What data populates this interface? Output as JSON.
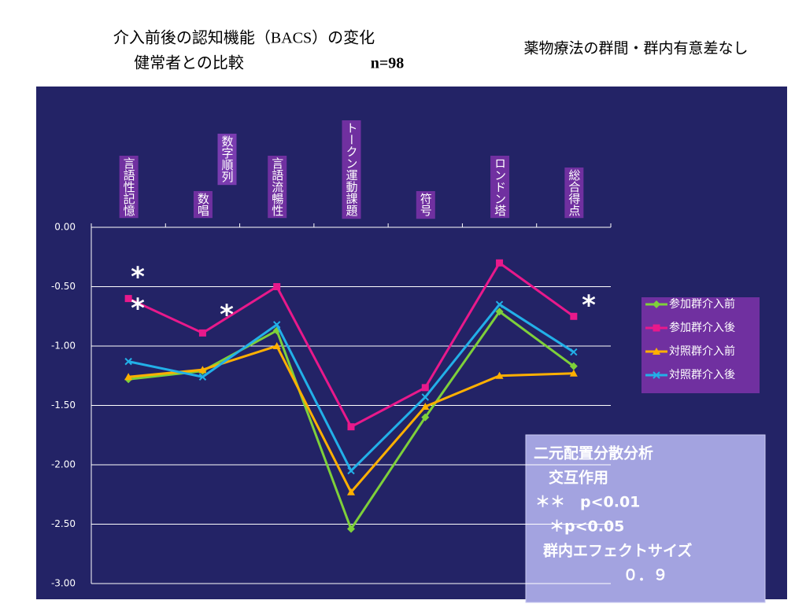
{
  "chart_data": {
    "type": "line",
    "title": "介入前後の認知機能（BACS）の変化",
    "subtitle": "健常者との比較",
    "sample_size": "n=98",
    "note": "薬物療法の群間・群内有意差なし",
    "categories": [
      "言語性記憶",
      "数唱",
      "言語流暢性",
      "トークン運動課題",
      "符号",
      "ロンドン塔",
      "総合得点"
    ],
    "overlay_label": "数字順列",
    "series": [
      {
        "name": "参加群介入前",
        "color": "#7ed03a",
        "marker": "diamond",
        "values": [
          -1.28,
          -1.21,
          -0.87,
          -2.54,
          -1.6,
          -0.71,
          -1.17
        ]
      },
      {
        "name": "参加群介入後",
        "color": "#e8198b",
        "marker": "square",
        "values": [
          -0.6,
          -0.89,
          -0.5,
          -1.68,
          -1.35,
          -0.3,
          -0.75
        ]
      },
      {
        "name": "対照群介入前",
        "color": "#ffb000",
        "marker": "triangle",
        "values": [
          -1.26,
          -1.2,
          -1.0,
          -2.23,
          -1.51,
          -1.25,
          -1.23
        ]
      },
      {
        "name": "対照群介入後",
        "color": "#22b0e8",
        "marker": "x",
        "values": [
          -1.13,
          -1.26,
          -0.82,
          -2.05,
          -1.43,
          -0.65,
          -1.05
        ]
      }
    ],
    "ylim": [
      -3,
      0
    ],
    "yticks": [
      {
        "value": 0,
        "label": "0.00"
      },
      {
        "value": -0.5,
        "label": "-0.50"
      },
      {
        "value": -1,
        "label": "-1.00"
      },
      {
        "value": -1.5,
        "label": "-1.50"
      },
      {
        "value": -2,
        "label": "-2.00"
      },
      {
        "value": -2.5,
        "label": "-2.50"
      },
      {
        "value": -3,
        "label": "-3.00"
      }
    ],
    "grid": true,
    "annotations": [
      "*",
      "*",
      "*",
      "*"
    ],
    "stats_box": [
      "二元配置分散分析",
      "交互作用",
      "＊＊　p<0.01",
      "＊p<0.05",
      "群内エフェクトサイズ",
      "０．９"
    ]
  }
}
